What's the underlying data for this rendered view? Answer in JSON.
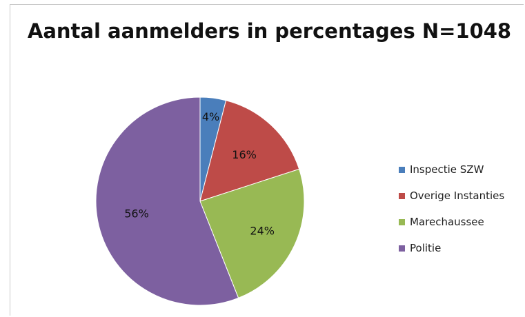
{
  "chart_data": {
    "type": "pie",
    "title": "Aantal aanmelders in percentages N=1048",
    "slices": [
      {
        "label": "Inspectie SZW",
        "value": 4,
        "data_label": "4%",
        "color": "#4a7ebb"
      },
      {
        "label": "Overige Instanties",
        "value": 16,
        "data_label": "16%",
        "color": "#be4b48"
      },
      {
        "label": "Marechaussee",
        "value": 24,
        "data_label": "24%",
        "color": "#98b954"
      },
      {
        "label": "Politie",
        "value": 56,
        "data_label": "56%",
        "color": "#7d60a0"
      }
    ],
    "legend_position": "right"
  }
}
